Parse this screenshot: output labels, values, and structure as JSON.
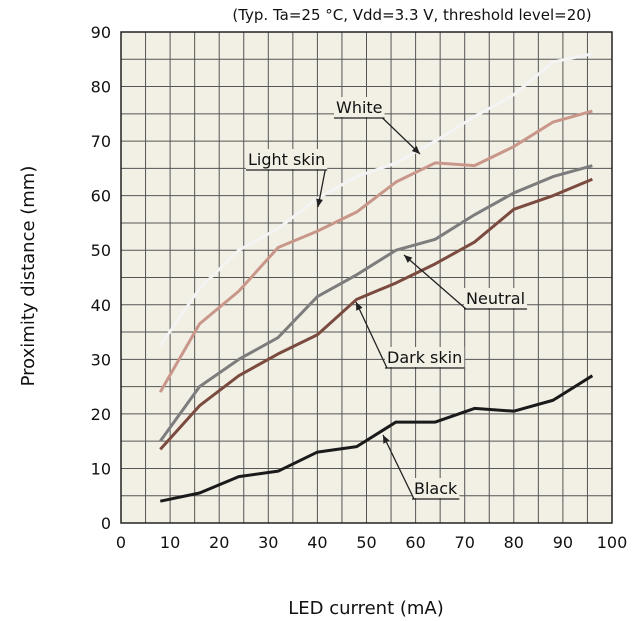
{
  "chart_data": {
    "type": "line",
    "title": "",
    "subtitle": "(Typ. Ta=25 °C, Vdd=3.3 V, threshold level=20)",
    "xlabel": "LED current (mA)",
    "ylabel": "Proximity distance (mm)",
    "xlim": [
      0,
      100
    ],
    "ylim": [
      0,
      90
    ],
    "xticks": [
      0,
      10,
      20,
      30,
      40,
      50,
      60,
      70,
      80,
      90,
      100
    ],
    "yticks": [
      0,
      10,
      20,
      30,
      40,
      50,
      60,
      70,
      80,
      90
    ],
    "grid": true,
    "background": "#f2efe4",
    "x": [
      8,
      16,
      24,
      32,
      40,
      48,
      56,
      64,
      72,
      80,
      88,
      96
    ],
    "series": [
      {
        "name": "White",
        "color": "#f4f4f4",
        "values": [
          32.5,
          43,
          50,
          54,
          59.5,
          63.5,
          66,
          70,
          74.5,
          78.5,
          84.5,
          86
        ]
      },
      {
        "name": "Light skin",
        "color": "#c9978a",
        "values": [
          24,
          36.5,
          42.5,
          50.5,
          53.5,
          57,
          62.5,
          66,
          65.5,
          69,
          73.5,
          75.5
        ]
      },
      {
        "name": "Neutral",
        "color": "#7d7d7d",
        "values": [
          15,
          25,
          30,
          34,
          41.5,
          45.5,
          50,
          52,
          56.5,
          60.5,
          63.5,
          65.5
        ]
      },
      {
        "name": "Dark skin",
        "color": "#7a4b3e",
        "values": [
          13.5,
          21.5,
          27,
          31,
          34.5,
          41,
          44,
          47.5,
          51.5,
          57.5,
          60,
          63
        ]
      },
      {
        "name": "Black",
        "color": "#1a1a1a",
        "values": [
          4,
          5.5,
          8.5,
          9.5,
          13,
          14,
          18.5,
          18.5,
          21,
          20.5,
          22.5,
          27
        ]
      }
    ],
    "annotations": [
      {
        "text": "White",
        "series": "White"
      },
      {
        "text": "Light skin",
        "series": "Light skin"
      },
      {
        "text": "Neutral",
        "series": "Neutral"
      },
      {
        "text": "Dark skin",
        "series": "Dark skin"
      },
      {
        "text": "Black",
        "series": "Black"
      }
    ]
  }
}
